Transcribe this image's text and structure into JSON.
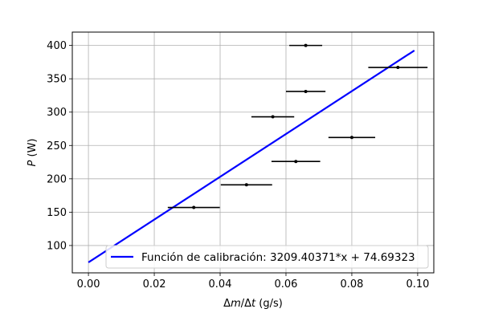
{
  "chart_data": {
    "type": "scatter",
    "title": "",
    "xlabel_parts": [
      {
        "text": "Δ",
        "italic": false
      },
      {
        "text": "m",
        "italic": true
      },
      {
        "text": "/Δ",
        "italic": false
      },
      {
        "text": "t",
        "italic": true
      },
      {
        "text": " (g/s)",
        "italic": false
      }
    ],
    "ylabel_parts": [
      {
        "text": "P",
        "italic": true
      },
      {
        "text": " (W)",
        "italic": false
      }
    ],
    "xlim": [
      -0.0049,
      0.1049
    ],
    "ylim": [
      59,
      420
    ],
    "xticks": [
      0.0,
      0.02,
      0.04,
      0.06,
      0.08,
      0.1
    ],
    "xtick_labels": [
      "0.00",
      "0.02",
      "0.04",
      "0.06",
      "0.08",
      "0.10"
    ],
    "yticks": [
      100,
      150,
      200,
      250,
      300,
      350,
      400
    ],
    "ytick_labels": [
      "100",
      "150",
      "200",
      "250",
      "300",
      "350",
      "400"
    ],
    "grid": true,
    "legend_position": "lower-right",
    "series": [
      {
        "kind": "errorbar",
        "color": "#000000",
        "points": [
          {
            "x": 0.032,
            "y": 157,
            "xerr": 0.0079
          },
          {
            "x": 0.048,
            "y": 191,
            "xerr": 0.0078
          },
          {
            "x": 0.056,
            "y": 293,
            "xerr": 0.0065
          },
          {
            "x": 0.063,
            "y": 226,
            "xerr": 0.0074
          },
          {
            "x": 0.066,
            "y": 331,
            "xerr": 0.006
          },
          {
            "x": 0.066,
            "y": 400,
            "xerr": 0.005
          },
          {
            "x": 0.08,
            "y": 262,
            "xerr": 0.0071
          },
          {
            "x": 0.094,
            "y": 367,
            "xerr": 0.009
          }
        ]
      },
      {
        "kind": "line",
        "name": "Función de calibración: 3209.40371*x + 74.69323",
        "color": "#0000ff",
        "slope": 3209.40371,
        "intercept": 74.69323,
        "x_range": [
          0.0,
          0.099
        ]
      }
    ]
  }
}
